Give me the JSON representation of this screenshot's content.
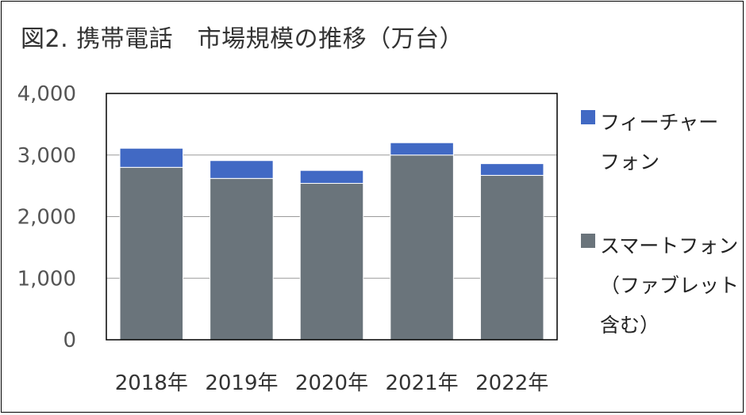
{
  "chart_data": {
    "type": "bar",
    "stacked": true,
    "title": "図2. 携帯電話　市場規模の推移（万台）",
    "categories": [
      "2018年",
      "2019年",
      "2020年",
      "2021年",
      "2022年"
    ],
    "series": [
      {
        "name": "スマートフォン（ファブレット含む）",
        "color": "#6a747b",
        "values": [
          2800,
          2620,
          2540,
          3000,
          2670
        ]
      },
      {
        "name": "フィーチャーフォン",
        "color": "#4169c4",
        "values": [
          310,
          290,
          210,
          200,
          190
        ]
      }
    ],
    "ylim": [
      0,
      4000
    ],
    "yticks": [
      "0",
      "1,000",
      "2,000",
      "3,000",
      "4,000"
    ],
    "ytick_values": [
      0,
      1000,
      2000,
      3000,
      4000
    ],
    "grid": true,
    "legend": "right"
  }
}
